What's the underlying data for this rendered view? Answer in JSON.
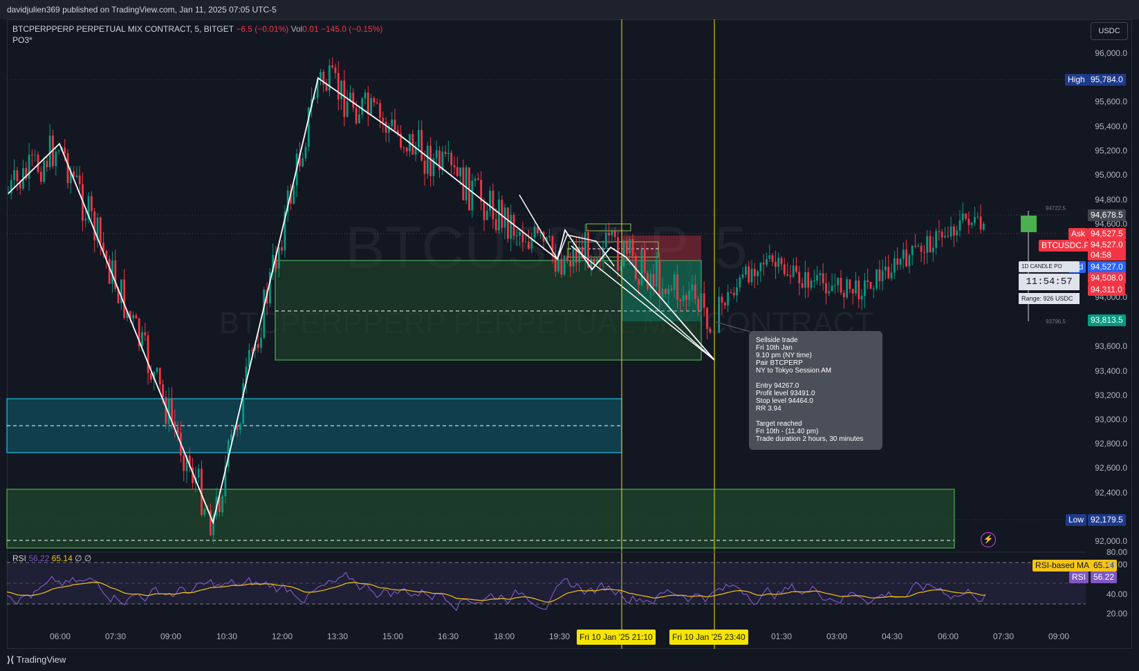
{
  "header": {
    "published": "davidjulien369 published on TradingView.com, Jan 11, 2025 07:05 UTC-5"
  },
  "legend": {
    "symbol": "BTCPERPPERP PERPETUAL MIX CONTRACT, 5, BITGET",
    "change": "−6.5 (−0.01%)",
    "vol_label": "Vol",
    "vol_value": "0.01",
    "vol_change": "−145.0 (−0.15%)",
    "indicator": "PO3*"
  },
  "currency": "USDC",
  "watermark": {
    "ticker": "BTCUSDC.P, 5",
    "name": "BTCPERPPERP PERPETUAL MIX CONTRACT"
  },
  "price_axis": [
    "96,000.0",
    "95,600.0",
    "95,400.0",
    "95,200.0",
    "95,000.0",
    "94,800.0",
    "94,600.0",
    "94,000.0",
    "93,600.0",
    "93,400.0",
    "93,200.0",
    "93,000.0",
    "92,800.0",
    "92,600.0",
    "92,400.0",
    "92,000.0"
  ],
  "price_tags": {
    "high_label": "High",
    "high_value": "95,784.0",
    "last": "94,678.5",
    "ask_label": "Ask",
    "ask_value": "94,527.5",
    "symbol_tag": "BTCUSDC.P",
    "price": "94,527.0",
    "countdown": "04:58",
    "bid_label": "Bid",
    "bid_value": "94,527.0",
    "p1": "94,508.0",
    "p2": "94,311.0",
    "p3": "93,813.5",
    "low_label": "Low",
    "low_value": "92,179.5",
    "small_1": "94722.5",
    "small_2": "93796.5"
  },
  "time_axis": [
    "06:00",
    "07:30",
    "09:00",
    "10:30",
    "12:00",
    "13:30",
    "15:00",
    "16:30",
    "18:00",
    "19:30",
    "01:30",
    "03:00",
    "04:30",
    "06:00",
    "07:30",
    "09:00"
  ],
  "time_markers": [
    "Fri 10 Jan '25   21:10",
    "Fri 10 Jan '25   23:40"
  ],
  "note": {
    "text": "Sellside trade\nFri 10th Jan\n9.10 pm (NY time)\nPair BTCPERP\nNY to Tokyo Session AM\n\nEntry 94267.0\nProfit level 93491.0\nStop level 94464.0\nRR 3.94\n\nTarget reached\nFri 10th - (11.40 pm)\nTrade duration 2 hours, 30 minutes"
  },
  "candle_timer": {
    "title": "1D CANDLE PO",
    "time": "11:54:57",
    "range": "Range: 926 USDC"
  },
  "rsi": {
    "label": "RSI",
    "value": "56.22",
    "ma": "65.14",
    "extra1": "∅",
    "extra2": "∅",
    "ma_tag_label": "RSI-based MA",
    "ma_tag_value": "65.14",
    "rsi_tag_label": "RSI",
    "rsi_tag_value": "56.22",
    "axis": [
      "80.00",
      "60.00",
      "40.00",
      "20.00"
    ]
  },
  "footer": {
    "brand": "TradingView"
  },
  "colors": {
    "up": "#089981",
    "down": "#f23645",
    "bg": "#131722",
    "marker": "#f5e400",
    "rsi": "#7e57c2",
    "rsi_ma": "#f5c518"
  }
}
